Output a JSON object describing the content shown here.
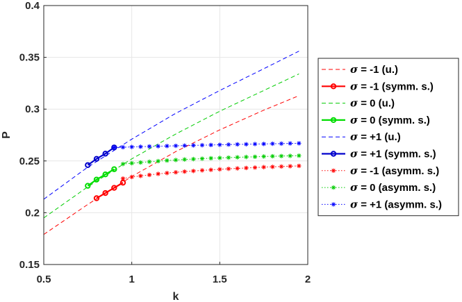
{
  "chart_data": {
    "type": "line",
    "xlabel": "k",
    "ylabel": "P",
    "xlim": [
      0.5,
      2
    ],
    "ylim": [
      0.15,
      0.4
    ],
    "xticks": [
      "0.5",
      "1",
      "1.5",
      "2"
    ],
    "yticks": [
      "0.15",
      "0.2",
      "0.25",
      "0.3",
      "0.35",
      "0.4"
    ],
    "grid": true,
    "legend_position": "right-outside",
    "series": [
      {
        "name": "σ = -1 (u.)",
        "label_suffix": " = -1 (u.)",
        "color": "#ff0000",
        "style": "dashed",
        "marker": "none",
        "x": [
          0.5,
          0.75,
          1.0,
          1.25,
          1.5,
          1.75,
          1.95
        ],
        "y": [
          0.179,
          0.208,
          0.235,
          0.259,
          0.28,
          0.299,
          0.313
        ]
      },
      {
        "name": "σ = -1 (symm. s.)",
        "label_suffix": " = -1 (symm. s.)",
        "color": "#ff0000",
        "style": "solid",
        "marker": "circle",
        "x": [
          0.8,
          0.85,
          0.9,
          0.95
        ],
        "y": [
          0.214,
          0.219,
          0.224,
          0.229
        ]
      },
      {
        "name": "σ = 0 (u.)",
        "label_suffix": " = 0 (u.)",
        "color": "#00cc00",
        "style": "dashed",
        "marker": "none",
        "x": [
          0.5,
          0.75,
          1.0,
          1.25,
          1.5,
          1.75,
          1.95
        ],
        "y": [
          0.195,
          0.225,
          0.252,
          0.276,
          0.298,
          0.318,
          0.334
        ]
      },
      {
        "name": "σ = 0 (symm. s.)",
        "label_suffix": " = 0 (symm. s.)",
        "color": "#00dd00",
        "style": "solid",
        "marker": "circle",
        "x": [
          0.75,
          0.8,
          0.85,
          0.9
        ],
        "y": [
          0.226,
          0.232,
          0.237,
          0.242
        ]
      },
      {
        "name": "σ = +1 (u.)",
        "label_suffix": " = +1 (u.)",
        "color": "#0000ff",
        "style": "dashed",
        "marker": "none",
        "x": [
          0.5,
          0.75,
          1.0,
          1.25,
          1.5,
          1.75,
          1.95
        ],
        "y": [
          0.213,
          0.244,
          0.271,
          0.296,
          0.318,
          0.339,
          0.356
        ]
      },
      {
        "name": "σ = +1 (symm. s.)",
        "label_suffix": " = +1 (symm. s.)",
        "color": "#0000cc",
        "style": "solid",
        "marker": "circle",
        "x": [
          0.75,
          0.8,
          0.85,
          0.9
        ],
        "y": [
          0.246,
          0.252,
          0.257,
          0.263
        ]
      },
      {
        "name": "σ = -1 (asymm. s.)",
        "label_suffix": " = -1 (asymm. s.)",
        "color": "#ff0000",
        "style": "dotted",
        "marker": "star",
        "x": [
          0.95,
          1.0,
          1.05,
          1.1,
          1.15,
          1.2,
          1.25,
          1.3,
          1.35,
          1.4,
          1.45,
          1.5,
          1.55,
          1.6,
          1.65,
          1.7,
          1.75,
          1.8,
          1.85,
          1.9,
          1.95
        ],
        "y": [
          0.233,
          0.2345,
          0.2355,
          0.2365,
          0.2375,
          0.2383,
          0.239,
          0.2397,
          0.2403,
          0.2409,
          0.2414,
          0.2419,
          0.2424,
          0.2428,
          0.2432,
          0.2436,
          0.244,
          0.2443,
          0.2446,
          0.2449,
          0.2452
        ]
      },
      {
        "name": "σ = 0 (asymm. s.)",
        "label_suffix": " = 0 (asymm. s.)",
        "color": "#00cc00",
        "style": "dotted",
        "marker": "star",
        "x": [
          0.95,
          1.0,
          1.05,
          1.1,
          1.15,
          1.2,
          1.25,
          1.3,
          1.35,
          1.4,
          1.45,
          1.5,
          1.55,
          1.6,
          1.65,
          1.7,
          1.75,
          1.8,
          1.85,
          1.9,
          1.95
        ],
        "y": [
          0.247,
          0.2478,
          0.2485,
          0.2492,
          0.2498,
          0.2504,
          0.2509,
          0.2514,
          0.2518,
          0.2522,
          0.2526,
          0.2529,
          0.2532,
          0.2535,
          0.2538,
          0.254,
          0.2543,
          0.2545,
          0.2547,
          0.2549,
          0.2551
        ]
      },
      {
        "name": "σ = +1 (asymm. s.)",
        "label_suffix": " = +1 (asymm. s.)",
        "color": "#0000ff",
        "style": "dotted",
        "marker": "star",
        "x": [
          0.9,
          0.95,
          1.0,
          1.05,
          1.1,
          1.15,
          1.2,
          1.25,
          1.3,
          1.35,
          1.4,
          1.45,
          1.5,
          1.55,
          1.6,
          1.65,
          1.7,
          1.75,
          1.8,
          1.85,
          1.9,
          1.95
        ],
        "y": [
          0.263,
          0.2632,
          0.2635,
          0.2637,
          0.264,
          0.2642,
          0.2644,
          0.2646,
          0.2648,
          0.265,
          0.2652,
          0.2654,
          0.2656,
          0.2658,
          0.266,
          0.2661,
          0.2663,
          0.2664,
          0.2666,
          0.2667,
          0.2669,
          0.267
        ]
      }
    ]
  }
}
